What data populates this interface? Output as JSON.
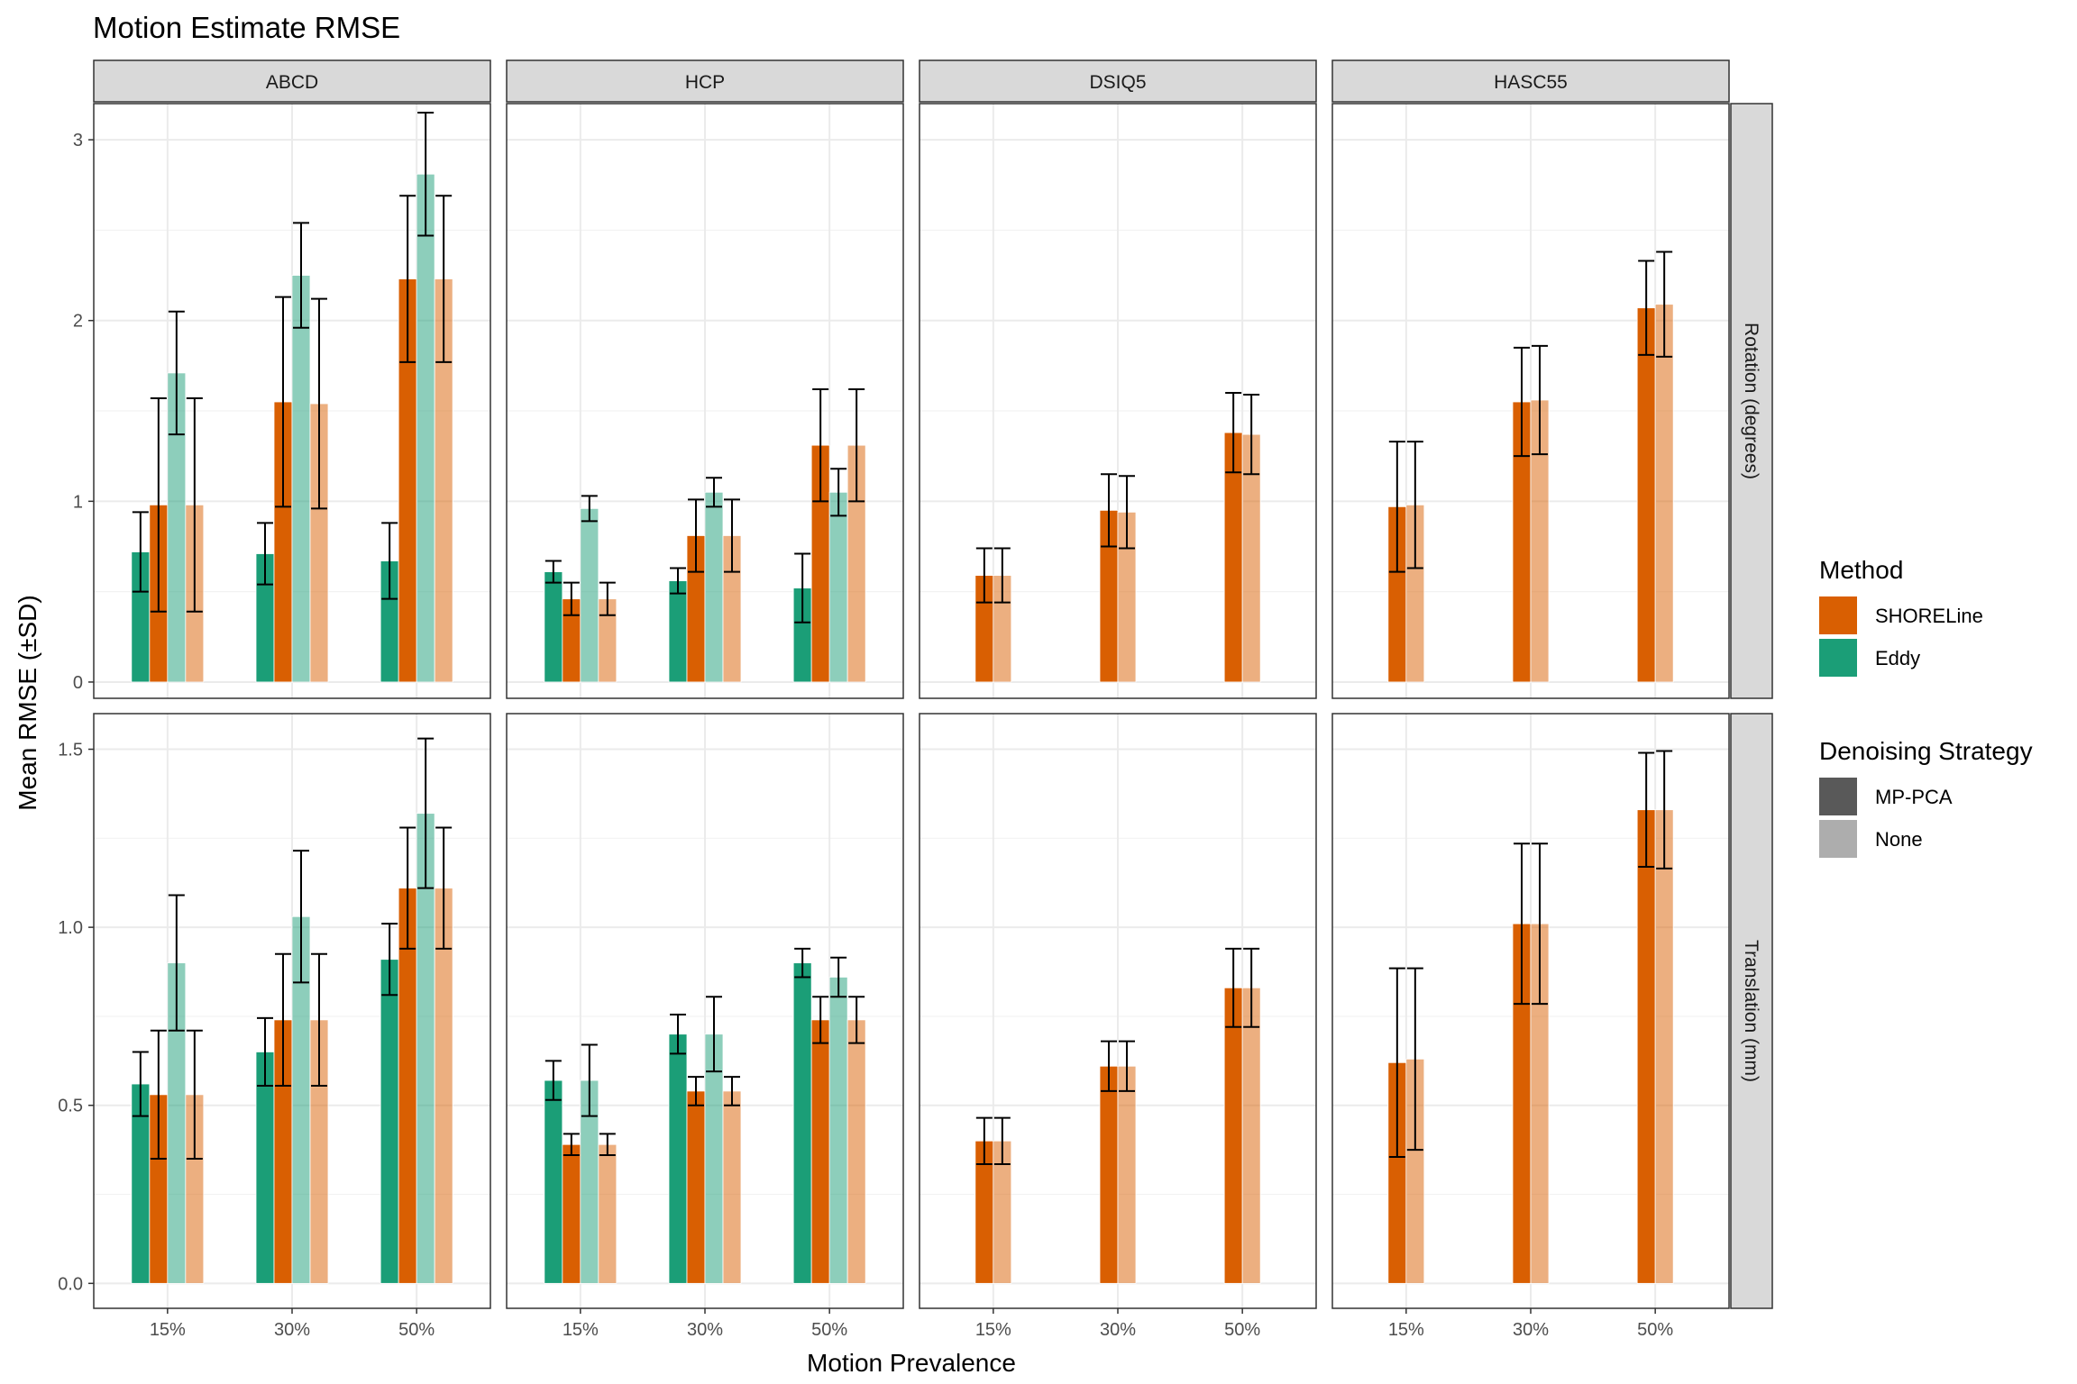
{
  "chart_data": {
    "type": "bar",
    "title": "Motion Estimate RMSE",
    "xlabel": "Motion Prevalence",
    "ylabel": "Mean RMSE (±SD)",
    "categories": [
      "15%",
      "30%",
      "50%"
    ],
    "grid": true,
    "legend_placement": "right",
    "colors": {
      "SHORELine": "#d95f02",
      "Eddy": "#1b9e77",
      "panel_border": "#333333",
      "strip_fill": "#d9d9d9",
      "grid": "#ebebeb"
    },
    "columns": [
      "ABCD",
      "HCP",
      "DSIQ5",
      "HASC55"
    ],
    "rows": [
      {
        "label": "Rotation (degrees)",
        "ylim": [
          -0.09,
          3.2
        ],
        "yticks": [
          0,
          1,
          2,
          3
        ],
        "tick_labels": [
          "0",
          "1",
          "2",
          "3"
        ]
      },
      {
        "label": "Translation (mm)",
        "ylim": [
          -0.07,
          1.6
        ],
        "yticks": [
          0.0,
          0.5,
          1.0,
          1.5
        ],
        "tick_labels": [
          "0.0",
          "0.5",
          "1.0",
          "1.5"
        ]
      }
    ],
    "legend": {
      "method_title": "Method",
      "method_items": [
        {
          "label": "SHORELine",
          "color": "#d95f02"
        },
        {
          "label": "Eddy",
          "color": "#1b9e77"
        }
      ],
      "denoise_title": "Denoising Strategy",
      "denoise_items": [
        {
          "label": "MP-PCA",
          "color": "#595959"
        },
        {
          "label": "None",
          "color": "#adadad"
        }
      ]
    },
    "panels": [
      {
        "row": 0,
        "col": 0,
        "series": [
          {
            "method": "Eddy",
            "denoise": "MP-PCA",
            "means": [
              0.72,
              0.71,
              0.67
            ],
            "sds": [
              0.22,
              0.17,
              0.21
            ]
          },
          {
            "method": "SHORELine",
            "denoise": "MP-PCA",
            "means": [
              0.98,
              1.55,
              2.23
            ],
            "sds": [
              0.59,
              0.58,
              0.46
            ]
          },
          {
            "method": "Eddy",
            "denoise": "None",
            "means": [
              1.71,
              2.25,
              2.81
            ],
            "sds": [
              0.34,
              0.29,
              0.34
            ]
          },
          {
            "method": "SHORELine",
            "denoise": "None",
            "means": [
              0.98,
              1.54,
              2.23
            ],
            "sds": [
              0.59,
              0.58,
              0.46
            ]
          }
        ]
      },
      {
        "row": 0,
        "col": 1,
        "series": [
          {
            "method": "Eddy",
            "denoise": "MP-PCA",
            "means": [
              0.61,
              0.56,
              0.52
            ],
            "sds": [
              0.06,
              0.07,
              0.19
            ]
          },
          {
            "method": "SHORELine",
            "denoise": "MP-PCA",
            "means": [
              0.46,
              0.81,
              1.31
            ],
            "sds": [
              0.09,
              0.2,
              0.31
            ]
          },
          {
            "method": "Eddy",
            "denoise": "None",
            "means": [
              0.96,
              1.05,
              1.05
            ],
            "sds": [
              0.07,
              0.08,
              0.13
            ]
          },
          {
            "method": "SHORELine",
            "denoise": "None",
            "means": [
              0.46,
              0.81,
              1.31
            ],
            "sds": [
              0.09,
              0.2,
              0.31
            ]
          }
        ]
      },
      {
        "row": 0,
        "col": 2,
        "series": [
          {
            "method": "SHORELine",
            "denoise": "MP-PCA",
            "means": [
              0.59,
              0.95,
              1.38
            ],
            "sds": [
              0.15,
              0.2,
              0.22
            ]
          },
          {
            "method": "SHORELine",
            "denoise": "None",
            "means": [
              0.59,
              0.94,
              1.37
            ],
            "sds": [
              0.15,
              0.2,
              0.22
            ]
          }
        ]
      },
      {
        "row": 0,
        "col": 3,
        "series": [
          {
            "method": "SHORELine",
            "denoise": "MP-PCA",
            "means": [
              0.97,
              1.55,
              2.07
            ],
            "sds": [
              0.36,
              0.3,
              0.26
            ]
          },
          {
            "method": "SHORELine",
            "denoise": "None",
            "means": [
              0.98,
              1.56,
              2.09
            ],
            "sds": [
              0.35,
              0.3,
              0.29
            ]
          }
        ]
      },
      {
        "row": 1,
        "col": 0,
        "series": [
          {
            "method": "Eddy",
            "denoise": "MP-PCA",
            "means": [
              0.56,
              0.65,
              0.91
            ],
            "sds": [
              0.09,
              0.095,
              0.1
            ]
          },
          {
            "method": "SHORELine",
            "denoise": "MP-PCA",
            "means": [
              0.53,
              0.74,
              1.11
            ],
            "sds": [
              0.18,
              0.185,
              0.17
            ]
          },
          {
            "method": "Eddy",
            "denoise": "None",
            "means": [
              0.9,
              1.03,
              1.32
            ],
            "sds": [
              0.19,
              0.185,
              0.21
            ]
          },
          {
            "method": "SHORELine",
            "denoise": "None",
            "means": [
              0.53,
              0.74,
              1.11
            ],
            "sds": [
              0.18,
              0.185,
              0.17
            ]
          }
        ]
      },
      {
        "row": 1,
        "col": 1,
        "series": [
          {
            "method": "Eddy",
            "denoise": "MP-PCA",
            "means": [
              0.57,
              0.7,
              0.9
            ],
            "sds": [
              0.055,
              0.055,
              0.04
            ]
          },
          {
            "method": "SHORELine",
            "denoise": "MP-PCA",
            "means": [
              0.39,
              0.54,
              0.74
            ],
            "sds": [
              0.03,
              0.04,
              0.065
            ]
          },
          {
            "method": "Eddy",
            "denoise": "None",
            "means": [
              0.57,
              0.7,
              0.86
            ],
            "sds": [
              0.1,
              0.105,
              0.055
            ]
          },
          {
            "method": "SHORELine",
            "denoise": "None",
            "means": [
              0.39,
              0.54,
              0.74
            ],
            "sds": [
              0.03,
              0.04,
              0.065
            ]
          }
        ]
      },
      {
        "row": 1,
        "col": 2,
        "series": [
          {
            "method": "SHORELine",
            "denoise": "MP-PCA",
            "means": [
              0.4,
              0.61,
              0.83
            ],
            "sds": [
              0.065,
              0.07,
              0.11
            ]
          },
          {
            "method": "SHORELine",
            "denoise": "None",
            "means": [
              0.4,
              0.61,
              0.83
            ],
            "sds": [
              0.065,
              0.07,
              0.11
            ]
          }
        ]
      },
      {
        "row": 1,
        "col": 3,
        "series": [
          {
            "method": "SHORELine",
            "denoise": "MP-PCA",
            "means": [
              0.62,
              1.01,
              1.33
            ],
            "sds": [
              0.265,
              0.225,
              0.16
            ]
          },
          {
            "method": "SHORELine",
            "denoise": "None",
            "means": [
              0.63,
              1.01,
              1.33
            ],
            "sds": [
              0.255,
              0.225,
              0.165
            ]
          }
        ]
      }
    ]
  }
}
